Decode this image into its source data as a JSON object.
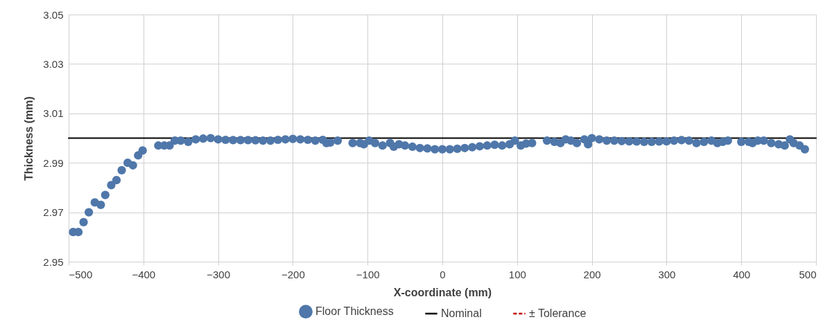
{
  "chart_data": {
    "type": "scatter",
    "xlabel": "X-coordinate (mm)",
    "ylabel": "Thickness (mm)",
    "xlim": [
      -500,
      500
    ],
    "xticks": [
      -500,
      -400,
      -300,
      -200,
      -100,
      0,
      100,
      200,
      300,
      400,
      500
    ],
    "ylim": [
      2.95,
      3.05
    ],
    "yticks": [
      2.95,
      2.97,
      2.99,
      3.01,
      3.03,
      3.05
    ],
    "grid": true,
    "legend": "bottom",
    "series": [
      {
        "name": "Floor Thickness",
        "marker": "circle",
        "color": "#4f77aa",
        "x": [
          -494,
          -487,
          -480,
          -473,
          -465,
          -457,
          -451,
          -443,
          -436,
          -429,
          -421,
          -414,
          -407,
          -401,
          -380,
          -372,
          -365,
          -358,
          -350,
          -340,
          -330,
          -320,
          -310,
          -300,
          -290,
          -280,
          -270,
          -260,
          -250,
          -240,
          -230,
          -220,
          -210,
          -200,
          -190,
          -180,
          -170,
          -160,
          -155,
          -150,
          -140,
          -120,
          -110,
          -105,
          -98,
          -90,
          -80,
          -70,
          -65,
          -58,
          -50,
          -40,
          -30,
          -20,
          -10,
          0,
          10,
          20,
          30,
          40,
          50,
          60,
          70,
          80,
          90,
          97,
          105,
          112,
          120,
          140,
          150,
          158,
          165,
          172,
          180,
          190,
          195,
          200,
          210,
          220,
          230,
          240,
          250,
          260,
          270,
          280,
          290,
          300,
          310,
          320,
          330,
          340,
          350,
          360,
          368,
          375,
          382,
          400,
          410,
          415,
          422,
          430,
          440,
          450,
          458,
          465,
          470,
          478,
          485
        ],
        "values": [
          2.962,
          2.962,
          2.966,
          2.97,
          2.974,
          2.973,
          2.977,
          2.981,
          2.983,
          2.987,
          2.99,
          2.989,
          2.993,
          2.995,
          2.997,
          2.997,
          2.997,
          2.999,
          2.999,
          2.9985,
          2.9995,
          2.9998,
          3.0,
          2.9995,
          2.9993,
          2.9992,
          2.9992,
          2.9992,
          2.9991,
          2.999,
          2.999,
          2.9993,
          2.9995,
          2.9997,
          2.9995,
          2.9993,
          2.999,
          2.9993,
          2.998,
          2.9982,
          2.999,
          2.998,
          2.998,
          2.9975,
          2.999,
          2.998,
          2.997,
          2.998,
          2.9965,
          2.9975,
          2.997,
          2.9965,
          2.996,
          2.9958,
          2.9955,
          2.9955,
          2.9955,
          2.9957,
          2.996,
          2.9963,
          2.9967,
          2.997,
          2.9973,
          2.997,
          2.9975,
          2.999,
          2.997,
          2.9978,
          2.998,
          2.999,
          2.9985,
          2.998,
          2.9995,
          2.999,
          2.998,
          2.9995,
          2.9975,
          3.0,
          2.9995,
          2.999,
          2.999,
          2.9988,
          2.9987,
          2.9986,
          2.9985,
          2.9985,
          2.9986,
          2.9987,
          2.999,
          2.9992,
          2.999,
          2.998,
          2.9985,
          2.999,
          2.998,
          2.9985,
          2.999,
          2.9985,
          2.9985,
          2.998,
          2.999,
          2.999,
          2.998,
          2.9975,
          2.997,
          2.9995,
          2.998,
          2.997,
          2.9955
        ]
      },
      {
        "name": "Nominal",
        "type": "line",
        "color": "#000000",
        "line_style": "solid",
        "x": [
          -500,
          500
        ],
        "values": [
          3.0,
          3.0
        ]
      },
      {
        "name": "± Tolerance",
        "type": "line",
        "color": "#c00000",
        "line_style": "dashed"
      }
    ]
  }
}
